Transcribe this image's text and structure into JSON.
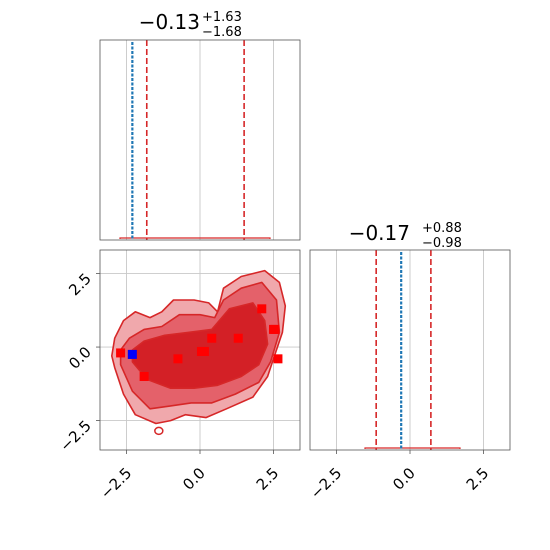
{
  "chart_data": {
    "type": "corner",
    "panels": [
      {
        "id": "hist-x",
        "type": "histogram",
        "title": {
          "value": "−0.13",
          "upper": "+1.63",
          "lower": "−1.68"
        },
        "xlim": [
          -3.4,
          3.4
        ],
        "grid": true,
        "quantile_lines": [
          -1.81,
          1.5
        ],
        "truth_line": -2.3,
        "colors": {
          "hist": "#d62728",
          "quantile": "#d62728",
          "truth": "#1f77b4"
        }
      },
      {
        "id": "hist-y",
        "type": "histogram",
        "title": {
          "value": "−0.17",
          "upper": "+0.88",
          "lower": "−0.98"
        },
        "xlim": [
          -3.4,
          3.4
        ],
        "xticks": [
          "−2.5",
          "0.0",
          "2.5"
        ],
        "xtick_values": [
          -2.5,
          0.0,
          2.5
        ],
        "grid": true,
        "quantile_lines": [
          -1.15,
          0.71
        ],
        "truth_line": -0.3,
        "colors": {
          "hist": "#d62728",
          "quantile": "#d62728",
          "truth": "#1f77b4"
        }
      },
      {
        "id": "joint",
        "type": "contour",
        "xlim": [
          -3.4,
          3.4
        ],
        "ylim": [
          -3.5,
          3.3
        ],
        "xticks": [
          "−2.5",
          "0.0",
          "2.5"
        ],
        "xtick_values": [
          -2.5,
          0.0,
          2.5
        ],
        "yticks": [
          "2.5",
          "0.0",
          "−2.5"
        ],
        "ytick_values": [
          2.5,
          0.0,
          -2.5
        ],
        "grid": true,
        "contour_levels": [
          {
            "x": [
              -2.9,
              -2.6,
              -2.2,
              -1.5,
              -1.0,
              -0.5,
              0.2,
              0.9,
              1.8,
              2.3,
              2.5,
              2.8,
              2.9,
              2.7,
              2.2,
              1.4,
              0.8,
              0.6,
              0.3,
              -0.2,
              -0.9,
              -1.3,
              -1.7,
              -2.2,
              -2.6,
              -2.9,
              -3.0
            ],
            "y": [
              -0.7,
              -1.6,
              -2.3,
              -2.6,
              -2.5,
              -2.3,
              -2.4,
              -2.1,
              -1.7,
              -1.0,
              -0.4,
              0.5,
              1.4,
              2.2,
              2.6,
              2.4,
              2.0,
              1.2,
              1.5,
              1.6,
              1.6,
              1.2,
              1.0,
              1.2,
              0.9,
              0.3,
              -0.3
            ]
          },
          {
            "x": [
              -2.7,
              -2.3,
              -1.7,
              -1.0,
              -0.3,
              0.4,
              1.2,
              2.0,
              2.4,
              2.7,
              2.6,
              2.1,
              1.4,
              0.8,
              0.5,
              0.0,
              -0.7,
              -1.3,
              -1.9,
              -2.4,
              -2.7
            ],
            "y": [
              -0.6,
              -1.5,
              -2.1,
              -2.0,
              -1.9,
              -1.9,
              -1.6,
              -1.2,
              -0.5,
              0.5,
              1.6,
              2.2,
              2.0,
              1.6,
              1.0,
              1.1,
              1.1,
              0.7,
              0.6,
              0.3,
              -0.1
            ]
          },
          {
            "x": [
              -2.3,
              -1.8,
              -1.0,
              -0.2,
              0.6,
              1.4,
              2.0,
              2.3,
              2.2,
              1.8,
              1.0,
              0.4,
              -0.4,
              -1.2,
              -1.9,
              -2.3
            ],
            "y": [
              -0.5,
              -1.1,
              -1.4,
              -1.4,
              -1.3,
              -1.0,
              -0.6,
              0.1,
              0.9,
              1.5,
              1.3,
              0.6,
              0.5,
              0.4,
              0.2,
              -0.1
            ]
          }
        ],
        "samples": [
          {
            "x": -2.7,
            "y": -0.2
          },
          {
            "x": -2.3,
            "y": -0.25
          },
          {
            "x": -1.9,
            "y": -1.0
          },
          {
            "x": -0.75,
            "y": -0.4
          },
          {
            "x": 0.05,
            "y": -0.15
          },
          {
            "x": 0.15,
            "y": -0.15
          },
          {
            "x": 0.4,
            "y": 0.3
          },
          {
            "x": 1.3,
            "y": 0.3
          },
          {
            "x": 2.1,
            "y": 1.3
          },
          {
            "x": 2.5,
            "y": 0.6
          },
          {
            "x": 2.55,
            "y": 0.6
          },
          {
            "x": 2.65,
            "y": -0.4
          }
        ],
        "truth_point": {
          "x": -2.3,
          "y": -0.25
        },
        "colors": {
          "fill_outer": "#f0a8ac",
          "fill_mid": "#e4616a",
          "fill_inner": "#d32026",
          "line": "#d62728",
          "sample": "#ff0000",
          "truth": "#0000ff"
        }
      }
    ]
  }
}
